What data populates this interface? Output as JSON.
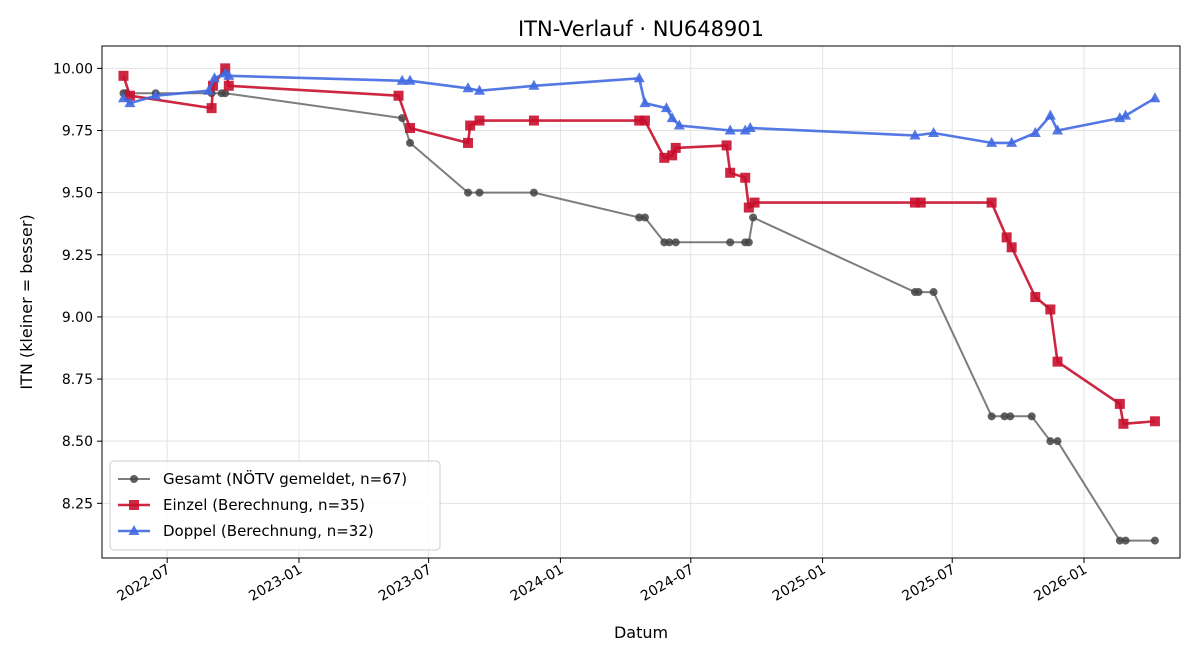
{
  "chart_data": {
    "type": "line",
    "title": "ITN-Verlauf · NU648901",
    "xlabel": "Datum",
    "ylabel": "ITN  (kleiner = besser)",
    "xlim": [
      "2022-04-01",
      "2026-05-15"
    ],
    "ylim": [
      8.03,
      10.09
    ],
    "y_ticks": [
      "8.25",
      "8.50",
      "8.75",
      "9.00",
      "9.25",
      "9.50",
      "9.75",
      "10.00"
    ],
    "x_ticks": [
      "2022-07",
      "2023-01",
      "2023-07",
      "2024-01",
      "2024-07",
      "2025-01",
      "2025-07",
      "2026-01"
    ],
    "grid": true,
    "legend_position": "lower-left",
    "series": [
      {
        "name": "Gesamt (NÖTV gemeldet, n=67)",
        "color": "#666666",
        "marker": "circle",
        "points": [
          [
            "2022-05-01",
            9.9
          ],
          [
            "2022-05-05",
            9.9
          ],
          [
            "2022-06-15",
            9.9
          ],
          [
            "2022-09-01",
            9.9
          ],
          [
            "2022-09-15",
            9.9
          ],
          [
            "2022-09-20",
            9.9
          ],
          [
            "2023-05-25",
            9.8
          ],
          [
            "2023-06-05",
            9.7
          ],
          [
            "2023-08-25",
            9.5
          ],
          [
            "2023-09-10",
            9.5
          ],
          [
            "2023-11-25",
            9.5
          ],
          [
            "2024-04-20",
            9.4
          ],
          [
            "2024-04-28",
            9.4
          ],
          [
            "2024-05-25",
            9.3
          ],
          [
            "2024-06-01",
            9.3
          ],
          [
            "2024-06-10",
            9.3
          ],
          [
            "2024-08-25",
            9.3
          ],
          [
            "2024-09-15",
            9.3
          ],
          [
            "2024-09-20",
            9.3
          ],
          [
            "2024-09-26",
            9.4
          ],
          [
            "2025-05-10",
            9.1
          ],
          [
            "2025-05-15",
            9.1
          ],
          [
            "2025-06-05",
            9.1
          ],
          [
            "2025-08-25",
            8.6
          ],
          [
            "2025-09-12",
            8.6
          ],
          [
            "2025-09-20",
            8.6
          ],
          [
            "2025-10-20",
            8.6
          ],
          [
            "2025-11-15",
            8.5
          ],
          [
            "2025-11-25",
            8.5
          ],
          [
            "2026-02-20",
            8.1
          ],
          [
            "2026-02-28",
            8.1
          ],
          [
            "2026-04-10",
            8.1
          ]
        ]
      },
      {
        "name": "Einzel (Berechnung, n=35)",
        "color": "#c8102e",
        "marker": "square",
        "points": [
          [
            "2022-05-01",
            9.97
          ],
          [
            "2022-05-10",
            9.89
          ],
          [
            "2022-09-01",
            9.84
          ],
          [
            "2022-09-03",
            9.93
          ],
          [
            "2022-09-20",
            10.0
          ],
          [
            "2022-09-25",
            9.93
          ],
          [
            "2023-05-20",
            9.89
          ],
          [
            "2023-06-05",
            9.76
          ],
          [
            "2023-08-25",
            9.7
          ],
          [
            "2023-08-28",
            9.77
          ],
          [
            "2023-09-10",
            9.79
          ],
          [
            "2023-11-25",
            9.79
          ],
          [
            "2024-04-20",
            9.79
          ],
          [
            "2024-04-28",
            9.79
          ],
          [
            "2024-05-25",
            9.64
          ],
          [
            "2024-06-05",
            9.65
          ],
          [
            "2024-06-10",
            9.68
          ],
          [
            "2024-08-20",
            9.69
          ],
          [
            "2024-08-25",
            9.58
          ],
          [
            "2024-09-15",
            9.56
          ],
          [
            "2024-09-20",
            9.44
          ],
          [
            "2024-09-28",
            9.46
          ],
          [
            "2025-05-10",
            9.46
          ],
          [
            "2025-05-18",
            9.46
          ],
          [
            "2025-08-25",
            9.46
          ],
          [
            "2025-09-15",
            9.32
          ],
          [
            "2025-09-22",
            9.28
          ],
          [
            "2025-10-25",
            9.08
          ],
          [
            "2025-11-15",
            9.03
          ],
          [
            "2025-11-25",
            8.82
          ],
          [
            "2026-02-20",
            8.65
          ],
          [
            "2026-02-25",
            8.57
          ],
          [
            "2026-04-10",
            8.58
          ]
        ]
      },
      {
        "name": "Doppel (Berechnung, n=32)",
        "color": "#4169e1",
        "marker": "triangle",
        "points": [
          [
            "2022-05-01",
            9.88
          ],
          [
            "2022-05-10",
            9.86
          ],
          [
            "2022-06-15",
            9.89
          ],
          [
            "2022-08-28",
            9.91
          ],
          [
            "2022-09-05",
            9.96
          ],
          [
            "2022-09-20",
            9.98
          ],
          [
            "2022-09-25",
            9.97
          ],
          [
            "2023-05-25",
            9.95
          ],
          [
            "2023-06-05",
            9.95
          ],
          [
            "2023-08-25",
            9.92
          ],
          [
            "2023-09-10",
            9.91
          ],
          [
            "2023-11-25",
            9.93
          ],
          [
            "2024-04-20",
            9.96
          ],
          [
            "2024-04-28",
            9.86
          ],
          [
            "2024-05-28",
            9.84
          ],
          [
            "2024-06-05",
            9.8
          ],
          [
            "2024-06-15",
            9.77
          ],
          [
            "2024-08-25",
            9.75
          ],
          [
            "2024-09-15",
            9.75
          ],
          [
            "2024-09-22",
            9.76
          ],
          [
            "2025-05-10",
            9.73
          ],
          [
            "2025-06-05",
            9.74
          ],
          [
            "2025-08-25",
            9.7
          ],
          [
            "2025-09-22",
            9.7
          ],
          [
            "2025-10-25",
            9.74
          ],
          [
            "2025-11-15",
            9.81
          ],
          [
            "2025-11-25",
            9.75
          ],
          [
            "2026-02-20",
            9.8
          ],
          [
            "2026-02-28",
            9.81
          ],
          [
            "2026-04-10",
            9.88
          ]
        ]
      }
    ]
  }
}
